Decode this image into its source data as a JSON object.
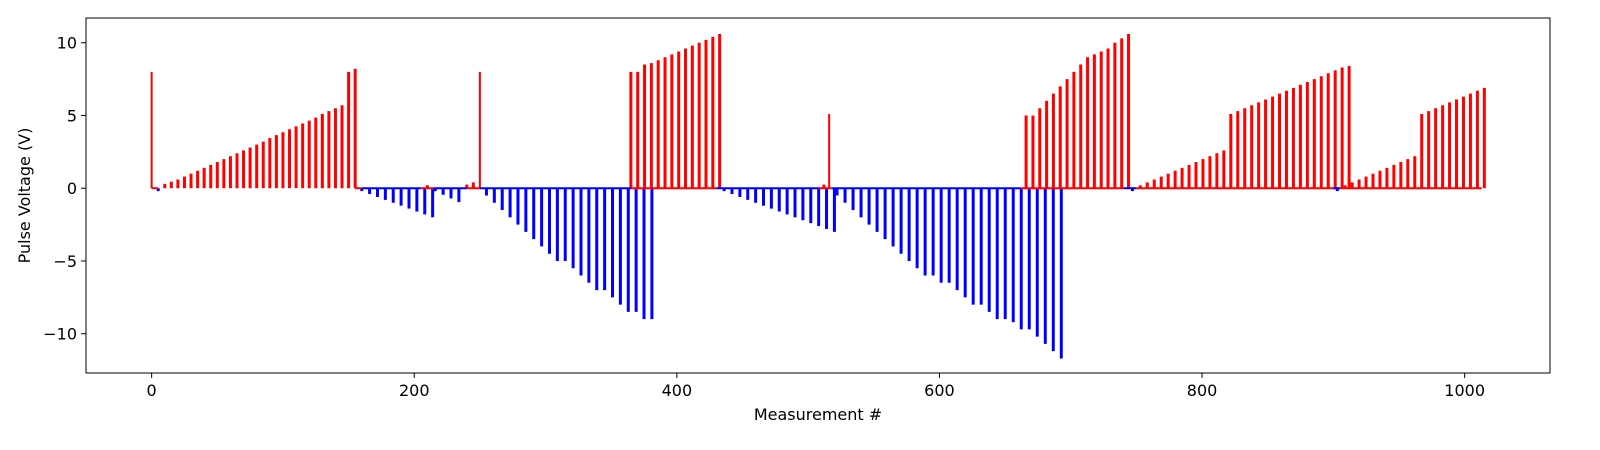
{
  "chart_data": {
    "type": "bar",
    "title": "",
    "xlabel": "Measurement #",
    "ylabel": "Pulse Voltage (V)",
    "xlim": [
      -50,
      1065
    ],
    "ylim": [
      -12.7,
      11.7
    ],
    "xticks": [
      0,
      200,
      400,
      600,
      800,
      1000
    ],
    "yticks": [
      -10,
      -5,
      0,
      5,
      10
    ],
    "grid": false,
    "colors": {
      "positive": "#ff0000",
      "negative": "#0000ff",
      "axes": "#000000"
    },
    "baselines": [
      {
        "color": "#ff0000",
        "segments": [
          [
            0,
            5
          ],
          [
            155,
            160
          ],
          [
            205,
            215
          ],
          [
            240,
            250
          ],
          [
            365,
            430
          ],
          [
            508,
            518
          ],
          [
            662,
            740
          ],
          [
            750,
            1013
          ]
        ]
      },
      {
        "color": "#0000ff",
        "segments": [
          [
            160,
            205
          ],
          [
            215,
            240
          ],
          [
            250,
            365
          ],
          [
            430,
            508
          ],
          [
            518,
            662
          ],
          [
            740,
            750
          ],
          [
            900,
            905
          ]
        ]
      }
    ],
    "series": [
      {
        "start": 0,
        "step": 5,
        "width": 2,
        "values": [
          8.0
        ]
      },
      {
        "start": 5,
        "step": 5,
        "width": 3,
        "values": [
          -0.2
        ]
      },
      {
        "start": 10,
        "step": 5,
        "width": 3,
        "values": [
          0.3,
          0.45,
          0.6,
          0.8,
          1.0,
          1.2,
          1.4,
          1.6,
          1.8,
          2.0,
          2.2,
          2.4,
          2.6,
          2.8,
          3.0,
          3.2,
          3.45,
          3.65,
          3.85,
          4.05,
          4.25,
          4.45,
          4.65,
          4.85,
          5.1,
          5.3,
          5.5,
          5.7
        ]
      },
      {
        "start": 150,
        "step": 5,
        "width": 3,
        "values": [
          8.0,
          8.2
        ]
      },
      {
        "start": 160,
        "step": 6,
        "width": 3,
        "values": [
          -0.2,
          -0.4,
          -0.6,
          -0.8,
          -1.0,
          -1.2,
          -1.4,
          -1.6,
          -1.8,
          -2.0
        ]
      },
      {
        "start": 210,
        "step": 6,
        "width": 3,
        "values": [
          0.2
        ]
      },
      {
        "start": 216,
        "step": 6,
        "width": 3,
        "values": [
          -0.2,
          -0.45,
          -0.7,
          -0.95
        ]
      },
      {
        "start": 240,
        "step": 5,
        "width": 3,
        "values": [
          0.25,
          0.4
        ]
      },
      {
        "start": 250,
        "step": 5,
        "width": 2,
        "values": [
          8.0
        ]
      },
      {
        "start": 255,
        "step": 6,
        "width": 3,
        "values": [
          -0.5,
          -1.0,
          -1.5,
          -2.0,
          -2.5,
          -3.0,
          -3.5,
          -4.0,
          -4.5,
          -5.0,
          -5.0,
          -5.5,
          -6.0,
          -6.5,
          -7.0,
          -7.0,
          -7.5,
          -8.0,
          -8.5,
          -8.5,
          -9.0,
          -9.0
        ]
      },
      {
        "start": 365,
        "step": 5.2,
        "width": 3,
        "values": [
          8.0,
          8.0,
          8.5,
          8.6,
          8.8,
          9.0,
          9.2,
          9.4,
          9.6,
          9.8,
          10.0,
          10.2,
          10.4,
          10.6
        ]
      },
      {
        "start": 436,
        "step": 6,
        "width": 3,
        "values": [
          -0.2,
          -0.4,
          -0.6,
          -0.8,
          -1.0,
          -1.2,
          -1.4,
          -1.6,
          -1.8,
          -2.0,
          -2.2,
          -2.4,
          -2.6,
          -2.8,
          -3.0
        ]
      },
      {
        "start": 512,
        "step": 5,
        "width": 3,
        "values": [
          0.25
        ]
      },
      {
        "start": 516,
        "step": 5,
        "width": 2,
        "values": [
          5.1
        ]
      },
      {
        "start": 522,
        "step": 6.1,
        "width": 3,
        "values": [
          -0.5,
          -1.0,
          -1.5,
          -2.0,
          -2.5,
          -3.0,
          -3.5,
          -4.0,
          -4.5,
          -5.0,
          -5.5,
          -6.0,
          -6.0,
          -6.5,
          -6.5,
          -7.0,
          -7.5,
          -8.0,
          -8.0,
          -8.5,
          -9.0,
          -9.0,
          -9.2,
          -9.7,
          -9.7,
          -10.2,
          -10.7,
          -11.2,
          -11.7
        ]
      },
      {
        "start": 666,
        "step": 5.2,
        "width": 3,
        "values": [
          5.0,
          5.0,
          5.5,
          6.0,
          6.5,
          7.0,
          7.5,
          8.0,
          8.5,
          9.0,
          9.2,
          9.4,
          9.6,
          10.0,
          10.3,
          10.6
        ]
      },
      {
        "start": 747,
        "step": 5,
        "width": 3,
        "values": [
          -0.2
        ]
      },
      {
        "start": 753,
        "step": 5.3,
        "width": 3,
        "values": [
          0.2,
          0.4,
          0.6,
          0.8,
          1.0,
          1.2,
          1.4,
          1.6,
          1.8,
          2.0,
          2.2,
          2.4,
          2.6,
          5.1,
          5.3,
          5.5,
          5.7,
          5.9,
          6.1,
          6.3,
          6.5,
          6.7,
          6.9,
          7.1,
          7.3,
          7.5,
          7.7,
          7.9,
          8.1,
          8.3,
          8.4
        ]
      },
      {
        "start": 903,
        "step": 5,
        "width": 3,
        "values": [
          -0.2
        ]
      },
      {
        "start": 909,
        "step": 5.3,
        "width": 3,
        "values": [
          0.2,
          0.4,
          0.6,
          0.8,
          1.0,
          1.2,
          1.4,
          1.6,
          1.8,
          2.0,
          2.2,
          5.1,
          5.3,
          5.5,
          5.7,
          5.9,
          6.1,
          6.3,
          6.5,
          6.7,
          6.9
        ]
      }
    ]
  }
}
